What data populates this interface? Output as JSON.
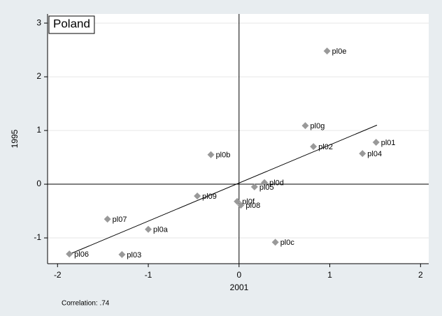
{
  "chart_data": {
    "type": "scatter",
    "title": "Poland",
    "x_label": "2001",
    "y_label": "1995",
    "note": "Correlation: .74",
    "point_labels": [
      "pl0e",
      "pl0g",
      "pl01",
      "pl02",
      "pl04",
      "pl0b",
      "pl0d",
      "pl05",
      "pl09",
      "pl0f",
      "pl08",
      "pl07",
      "pl0a",
      "pl0c",
      "pl06",
      "pl03"
    ],
    "x": [
      0.97,
      0.73,
      1.51,
      0.82,
      1.36,
      -0.31,
      0.28,
      0.17,
      -0.46,
      -0.02,
      0.02,
      -1.45,
      -1.0,
      0.4,
      -1.87,
      -1.29
    ],
    "y": [
      2.48,
      1.09,
      0.78,
      0.7,
      0.57,
      0.55,
      0.03,
      -0.05,
      -0.22,
      -0.32,
      -0.39,
      -0.65,
      -0.84,
      -1.08,
      -1.3,
      -1.31
    ],
    "color": "#999999",
    "fit_line": {
      "x": [
        -1.85,
        1.52
      ],
      "y": [
        -1.29,
        1.1
      ]
    },
    "xlim": [
      -2.11,
      2.09
    ],
    "xticks": [
      -2,
      -1,
      0,
      1,
      2
    ],
    "ylim": [
      -1.48,
      3.17
    ],
    "yticks": [
      -1,
      0,
      1,
      2,
      3
    ],
    "grid": true,
    "zero_lines": true
  }
}
